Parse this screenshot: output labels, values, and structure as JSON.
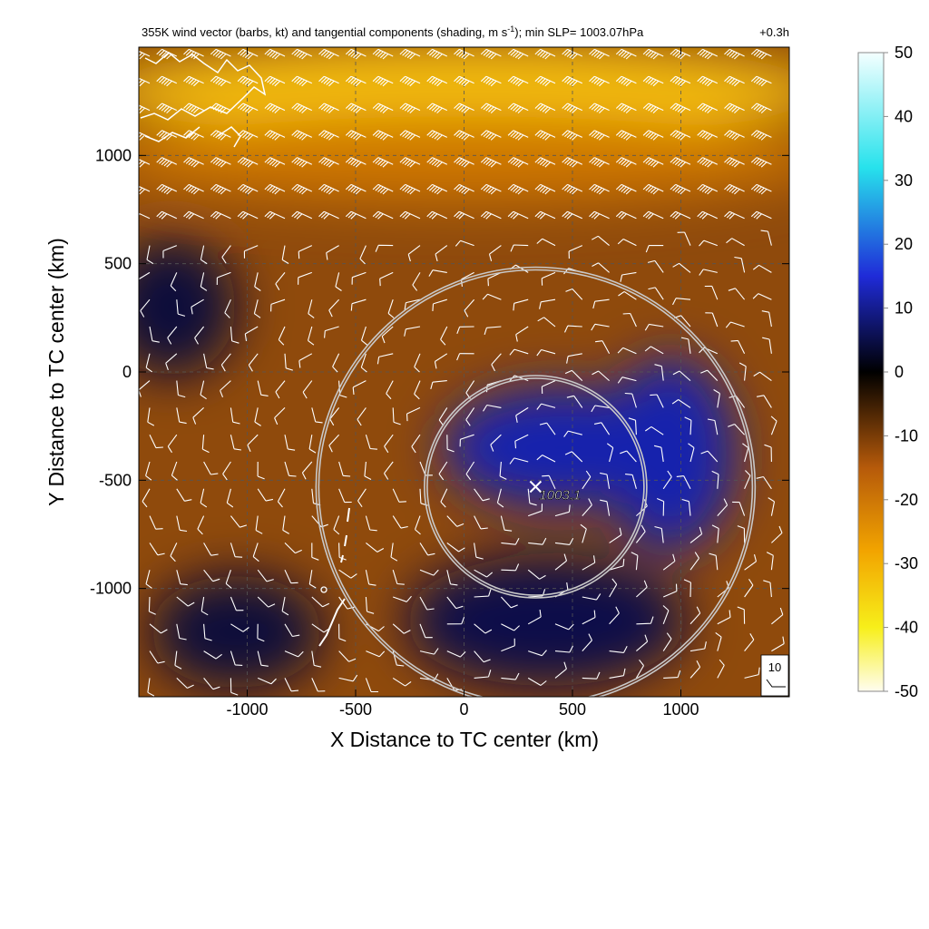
{
  "chart_data": {
    "type": "heatmap",
    "title": "355K wind vector (barbs, kt) and tangential components (shading, m s",
    "title_superscript": "-1",
    "title_suffix": "); min SLP= 1003.07hPa",
    "time_label": "+0.3h",
    "xlabel": "X Distance to TC center (km)",
    "ylabel": "Y Distance to TC center (km)",
    "xlim": [
      -1500,
      1500
    ],
    "ylim": [
      -1500,
      1500
    ],
    "x_ticks": [
      {
        "value": -1000,
        "label": "-1000"
      },
      {
        "value": -500,
        "label": "-500"
      },
      {
        "value": 0,
        "label": "0"
      },
      {
        "value": 500,
        "label": "500"
      },
      {
        "value": 1000,
        "label": "1000"
      }
    ],
    "y_ticks": [
      {
        "value": 1000,
        "label": "1000"
      },
      {
        "value": 500,
        "label": "500"
      },
      {
        "value": 0,
        "label": "0"
      },
      {
        "value": -500,
        "label": "-500"
      },
      {
        "value": -1000,
        "label": "-1000"
      }
    ],
    "grid": true,
    "colorbar": {
      "min": -50,
      "max": 50,
      "ticks": [
        {
          "value": 50,
          "label": "50"
        },
        {
          "value": 40,
          "label": "40"
        },
        {
          "value": 30,
          "label": "30"
        },
        {
          "value": 20,
          "label": "20"
        },
        {
          "value": 10,
          "label": "10"
        },
        {
          "value": 0,
          "label": "0"
        },
        {
          "value": -10,
          "label": "-10"
        },
        {
          "value": -20,
          "label": "-20"
        },
        {
          "value": -30,
          "label": "-30"
        },
        {
          "value": -40,
          "label": "-40"
        },
        {
          "value": -50,
          "label": "-50"
        }
      ]
    },
    "tc_center": {
      "x": 330,
      "y": -530,
      "label": "1003.1"
    },
    "range_rings_km": [
      500,
      1000
    ],
    "reference_barb": {
      "label": "10"
    },
    "shading_regions": [
      {
        "name": "north-westerlies",
        "value": -32,
        "x": 0,
        "y": 1300,
        "rx": 1700,
        "ry": 220
      },
      {
        "name": "north-band",
        "value": -20,
        "x": 0,
        "y": 980,
        "rx": 1700,
        "ry": 200
      },
      {
        "name": "west-blue",
        "value": 4,
        "x": -1350,
        "y": 300,
        "rx": 300,
        "ry": 320
      },
      {
        "name": "core-blue",
        "value": 12,
        "x": 450,
        "y": -350,
        "rx": 550,
        "ry": 280
      },
      {
        "name": "east-blue",
        "value": 12,
        "x": 950,
        "y": -380,
        "rx": 300,
        "ry": 450
      },
      {
        "name": "south-blue",
        "value": 5,
        "x": 380,
        "y": -1150,
        "rx": 650,
        "ry": 300
      },
      {
        "name": "sw-blue",
        "value": 4,
        "x": -1050,
        "y": -1200,
        "rx": 400,
        "ry": 260
      }
    ]
  }
}
